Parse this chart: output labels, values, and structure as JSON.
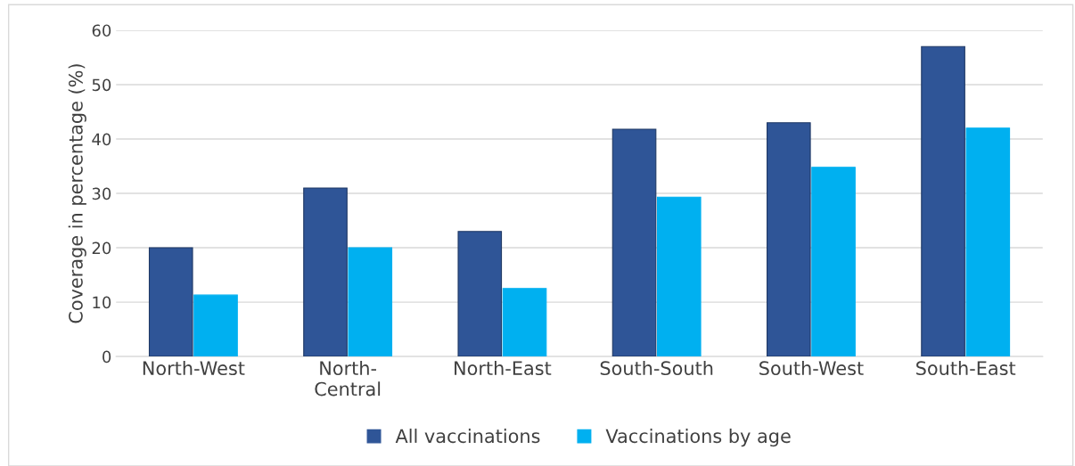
{
  "chart_data": {
    "type": "bar",
    "ylabel": "Coverage in percentage (%)",
    "categories": [
      "North-West",
      "North-\nCentral",
      "North-East",
      "South-South",
      "South-West",
      "South-East"
    ],
    "series": [
      {
        "name": "All vaccinations",
        "color": "#2f5597",
        "values": [
          20,
          31,
          23,
          41.8,
          43,
          57
        ]
      },
      {
        "name": "Vaccinations by age",
        "color": "#00b0f0",
        "values": [
          11.3,
          20,
          12.5,
          29.3,
          34.8,
          42
        ]
      }
    ],
    "ylim": [
      0,
      60
    ],
    "yticks": [
      0,
      10,
      20,
      30,
      40,
      50,
      60
    ],
    "grid": "y",
    "legend": "bottom"
  }
}
